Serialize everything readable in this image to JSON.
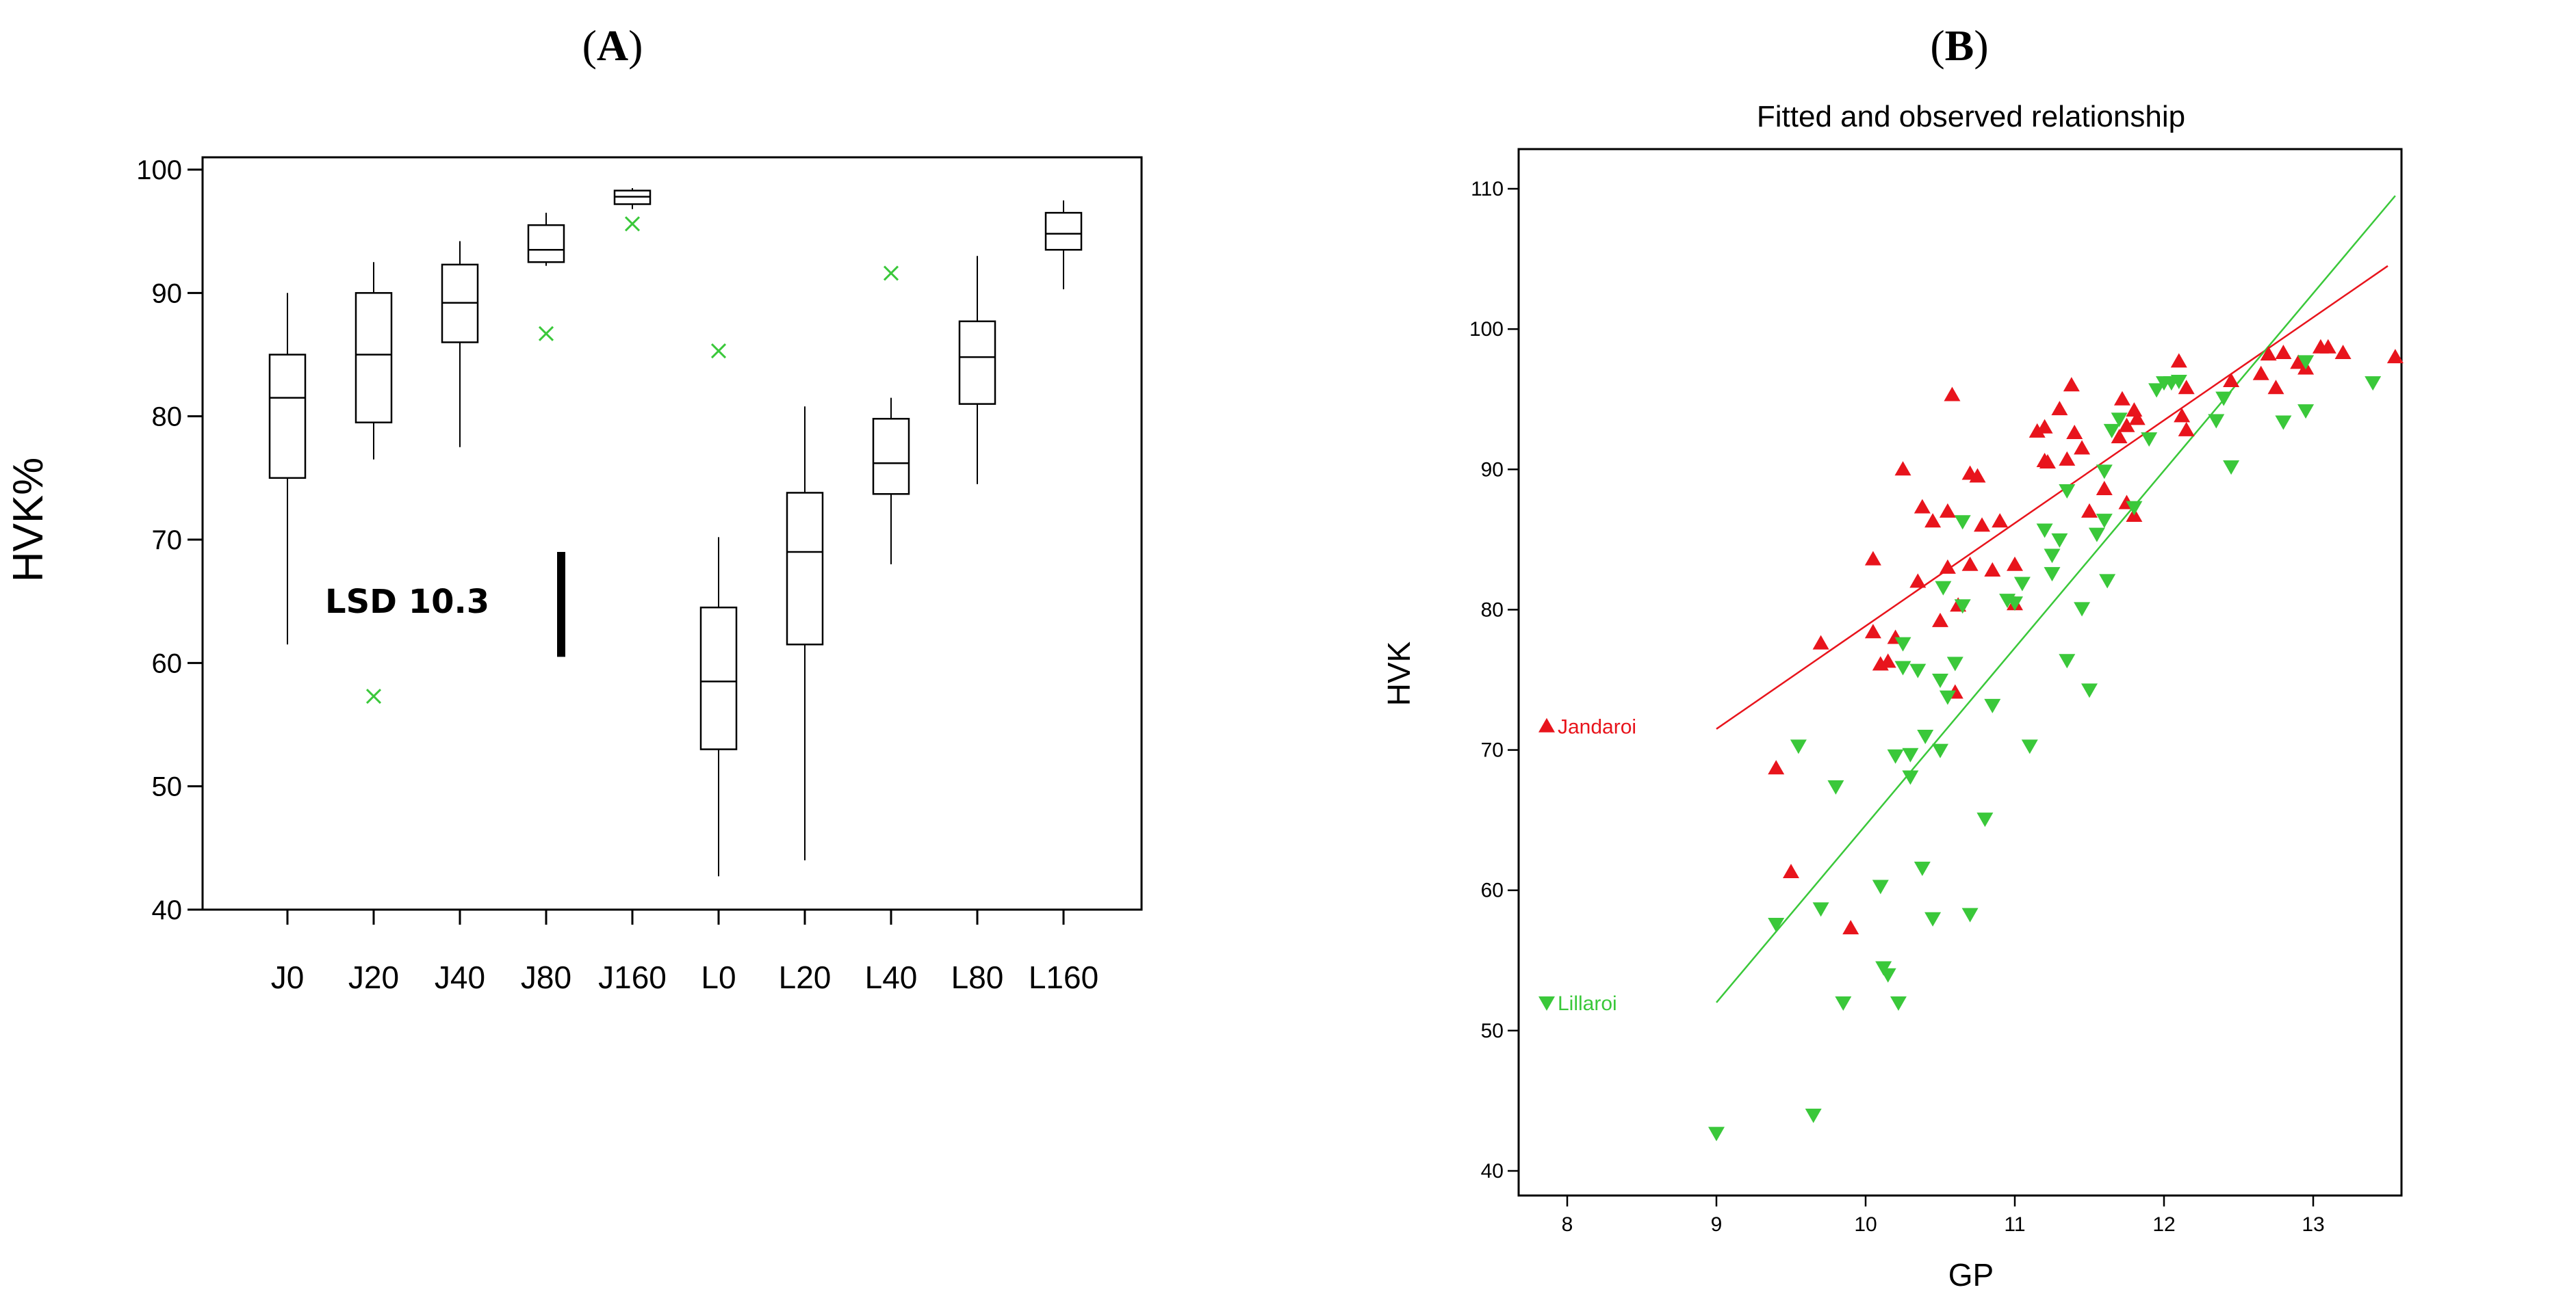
{
  "panels": {
    "a_label": "A",
    "b_label": "B"
  },
  "chart_data": [
    {
      "type": "box",
      "panel": "A",
      "title": "",
      "xlabel": "",
      "ylabel": "HVK%",
      "ylim": [
        40,
        100
      ],
      "yticks": [
        40,
        50,
        60,
        70,
        80,
        90,
        100
      ],
      "categories": [
        "J0",
        "J20",
        "J40",
        "J80",
        "J160",
        "L0",
        "L20",
        "L40",
        "L80",
        "L160"
      ],
      "boxes": [
        {
          "min": 61.5,
          "q1": 75,
          "median": 81.5,
          "q3": 85,
          "max": 90,
          "outlier": null
        },
        {
          "min": 76.5,
          "q1": 79.5,
          "median": 85,
          "q3": 90,
          "max": 92.5,
          "outlier": 57.3
        },
        {
          "min": 77.5,
          "q1": 86,
          "median": 89.2,
          "q3": 92.3,
          "max": 94.2,
          "outlier": null
        },
        {
          "min": 92.2,
          "q1": 92.5,
          "median": 93.5,
          "q3": 95.5,
          "max": 96.5,
          "outlier": 86.7
        },
        {
          "min": 96.8,
          "q1": 97.2,
          "median": 97.8,
          "q3": 98.3,
          "max": 98.5,
          "outlier": 95.6
        },
        {
          "min": 42.7,
          "q1": 53,
          "median": 58.5,
          "q3": 64.5,
          "max": 70.2,
          "outlier": 85.3
        },
        {
          "min": 44,
          "q1": 61.5,
          "median": 69,
          "q3": 73.8,
          "max": 80.8,
          "outlier": null
        },
        {
          "min": 68,
          "q1": 73.7,
          "median": 76.2,
          "q3": 79.8,
          "max": 81.5,
          "outlier": 91.6
        },
        {
          "min": 74.5,
          "q1": 81,
          "median": 84.8,
          "q3": 87.7,
          "max": 93,
          "outlier": null
        },
        {
          "min": 90.3,
          "q1": 93.5,
          "median": 94.8,
          "q3": 96.5,
          "max": 97.5,
          "outlier": null
        }
      ],
      "annotation": {
        "text": "LSD 10.3",
        "bar_low": 60.5,
        "bar_high": 69
      }
    },
    {
      "type": "scatter",
      "panel": "B",
      "title": "Fitted and observed relationship",
      "xlabel": "GP",
      "ylabel": "HVK",
      "xlim": [
        7.8,
        13.65
      ],
      "ylim": [
        39.5,
        111
      ],
      "xticks": [
        8,
        9,
        10,
        11,
        12,
        13
      ],
      "yticks": [
        40,
        50,
        60,
        70,
        80,
        90,
        100,
        110
      ],
      "series": [
        {
          "name": "Jandaroi",
          "color": "#e8141c",
          "marker": "triangle-up",
          "fit": {
            "x": [
              9.0,
              13.5
            ],
            "y": [
              71.5,
              104.5
            ]
          },
          "points": [
            [
              9.4,
              68.7
            ],
            [
              9.5,
              61.3
            ],
            [
              9.7,
              77.6
            ],
            [
              9.9,
              57.3
            ],
            [
              10.05,
              78.4
            ],
            [
              10.05,
              83.6
            ],
            [
              10.1,
              76.1
            ],
            [
              10.15,
              76.3
            ],
            [
              10.2,
              78
            ],
            [
              10.25,
              90
            ],
            [
              10.35,
              82
            ],
            [
              10.38,
              87.3
            ],
            [
              10.45,
              86.3
            ],
            [
              10.5,
              79.2
            ],
            [
              10.55,
              83
            ],
            [
              10.55,
              87
            ],
            [
              10.58,
              95.3
            ],
            [
              10.6,
              74.1
            ],
            [
              10.62,
              80.3
            ],
            [
              10.7,
              89.7
            ],
            [
              10.75,
              89.5
            ],
            [
              10.78,
              86
            ],
            [
              10.7,
              83.2
            ],
            [
              10.85,
              82.8
            ],
            [
              10.9,
              86.3
            ],
            [
              11.0,
              80.4
            ],
            [
              11.0,
              83.2
            ],
            [
              11.15,
              92.7
            ],
            [
              11.2,
              90.6
            ],
            [
              11.2,
              93
            ],
            [
              11.22,
              90.5
            ],
            [
              11.3,
              94.3
            ],
            [
              11.35,
              90.7
            ],
            [
              11.38,
              96
            ],
            [
              11.4,
              92.6
            ],
            [
              11.45,
              91.5
            ],
            [
              11.5,
              87
            ],
            [
              11.6,
              88.6
            ],
            [
              11.7,
              92.3
            ],
            [
              11.72,
              95
            ],
            [
              11.75,
              87.6
            ],
            [
              11.75,
              93.1
            ],
            [
              11.8,
              86.7
            ],
            [
              11.8,
              94.2
            ],
            [
              11.82,
              93.6
            ],
            [
              12.1,
              97.7
            ],
            [
              12.12,
              93.8
            ],
            [
              12.15,
              92.8
            ],
            [
              12.15,
              95.8
            ],
            [
              12.45,
              96.3
            ],
            [
              12.65,
              96.8
            ],
            [
              12.7,
              98.2
            ],
            [
              12.75,
              95.8
            ],
            [
              12.8,
              98.3
            ],
            [
              12.9,
              97.6
            ],
            [
              12.95,
              97.2
            ],
            [
              13.05,
              98.7
            ],
            [
              13.1,
              98.7
            ],
            [
              13.2,
              98.3
            ],
            [
              13.55,
              98
            ]
          ]
        },
        {
          "name": "Lillaroi",
          "color": "#3ac83a",
          "marker": "triangle-down",
          "fit": {
            "x": [
              9.0,
              13.55
            ],
            "y": [
              52,
              109.5
            ]
          },
          "points": [
            [
              9.0,
              42.7
            ],
            [
              9.4,
              57.6
            ],
            [
              9.55,
              70.3
            ],
            [
              9.65,
              44
            ],
            [
              9.7,
              58.7
            ],
            [
              9.8,
              67.4
            ],
            [
              9.85,
              52
            ],
            [
              10.1,
              60.3
            ],
            [
              10.12,
              54.5
            ],
            [
              10.15,
              54
            ],
            [
              10.2,
              69.6
            ],
            [
              10.22,
              52
            ],
            [
              10.25,
              77.6
            ],
            [
              10.25,
              75.9
            ],
            [
              10.3,
              68.1
            ],
            [
              10.3,
              69.7
            ],
            [
              10.35,
              75.7
            ],
            [
              10.38,
              61.6
            ],
            [
              10.4,
              71
            ],
            [
              10.45,
              58
            ],
            [
              10.5,
              70
            ],
            [
              10.5,
              75
            ],
            [
              10.52,
              81.6
            ],
            [
              10.55,
              73.8
            ],
            [
              10.6,
              76.2
            ],
            [
              10.65,
              86.3
            ],
            [
              10.65,
              80.3
            ],
            [
              10.7,
              58.3
            ],
            [
              10.8,
              65.1
            ],
            [
              10.85,
              73.2
            ],
            [
              10.95,
              80.7
            ],
            [
              11.0,
              80.5
            ],
            [
              11.05,
              81.9
            ],
            [
              11.1,
              70.3
            ],
            [
              11.2,
              85.7
            ],
            [
              11.25,
              82.6
            ],
            [
              11.25,
              83.9
            ],
            [
              11.3,
              85
            ],
            [
              11.35,
              76.4
            ],
            [
              11.35,
              88.5
            ],
            [
              11.45,
              80.1
            ],
            [
              11.5,
              74.3
            ],
            [
              11.55,
              85.4
            ],
            [
              11.6,
              86.4
            ],
            [
              11.6,
              89.9
            ],
            [
              11.62,
              82.1
            ],
            [
              11.65,
              92.8
            ],
            [
              11.7,
              93.6
            ],
            [
              11.8,
              87.3
            ],
            [
              11.9,
              92.2
            ],
            [
              11.95,
              95.7
            ],
            [
              12.0,
              96.2
            ],
            [
              12.05,
              96.2
            ],
            [
              12.1,
              96.3
            ],
            [
              12.35,
              93.5
            ],
            [
              12.4,
              95.1
            ],
            [
              12.45,
              90.2
            ],
            [
              12.8,
              93.4
            ],
            [
              12.95,
              97.7
            ],
            [
              12.95,
              94.2
            ],
            [
              13.4,
              96.2
            ]
          ]
        }
      ],
      "legend": [
        {
          "label": "Jandaroi",
          "y": 71.7
        },
        {
          "label": "Lillaroi",
          "y": 52
        }
      ]
    }
  ]
}
